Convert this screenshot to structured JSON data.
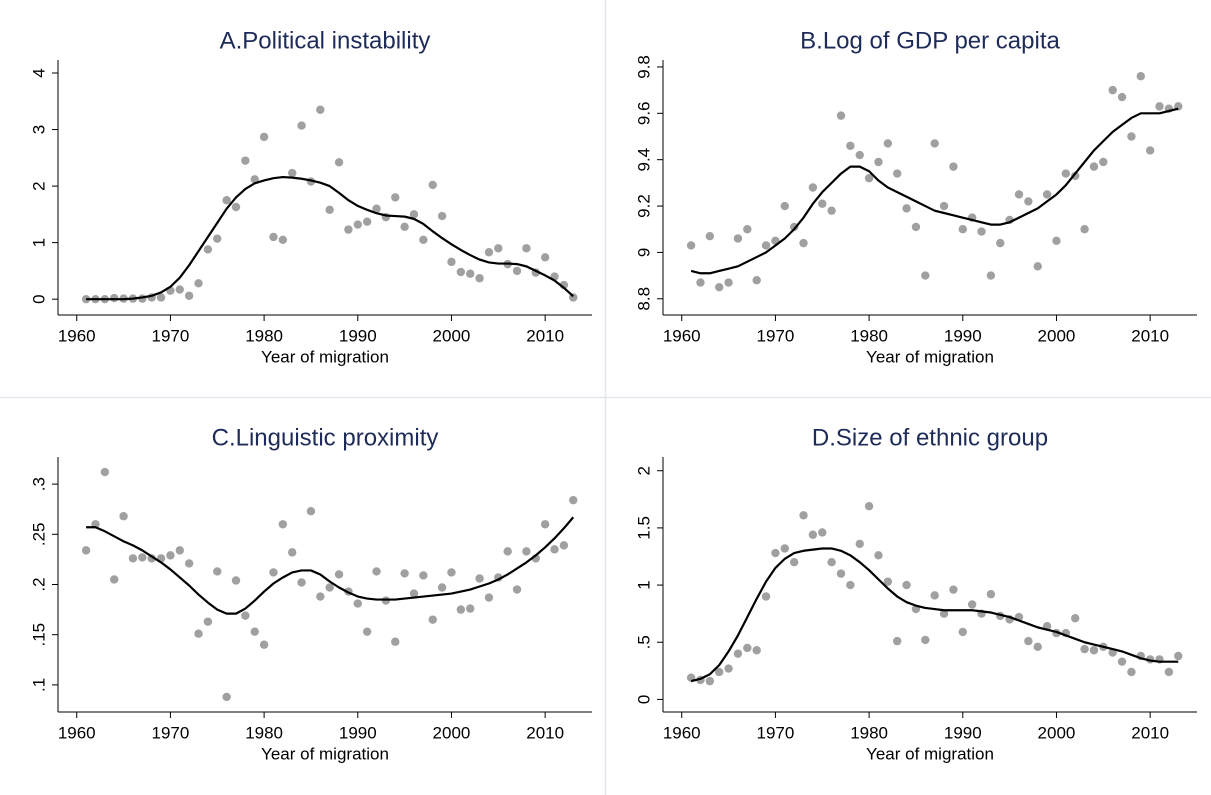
{
  "chart_data": [
    {
      "type": "scatter",
      "title": "A.Political instability",
      "xlabel": "Year of migration",
      "x": [
        1961,
        1962,
        1963,
        1964,
        1965,
        1966,
        1967,
        1968,
        1969,
        1970,
        1971,
        1972,
        1973,
        1974,
        1975,
        1976,
        1977,
        1978,
        1979,
        1980,
        1981,
        1982,
        1983,
        1984,
        1985,
        1986,
        1987,
        1988,
        1989,
        1990,
        1991,
        1992,
        1993,
        1994,
        1995,
        1996,
        1997,
        1998,
        1999,
        2000,
        2001,
        2002,
        2003,
        2004,
        2005,
        2006,
        2007,
        2008,
        2009,
        2010,
        2011,
        2012,
        2013
      ],
      "values": [
        0,
        0,
        0,
        0.02,
        0.01,
        0.01,
        0.01,
        0.03,
        0.03,
        0.15,
        0.17,
        0.06,
        0.28,
        0.88,
        1.07,
        1.75,
        1.63,
        2.45,
        2.12,
        2.87,
        1.1,
        1.05,
        2.23,
        3.07,
        2.08,
        3.35,
        1.58,
        2.42,
        1.23,
        1.32,
        1.37,
        1.6,
        1.45,
        1.8,
        1.28,
        1.5,
        1.05,
        2.02,
        1.47,
        0.66,
        0.48,
        0.45,
        0.37,
        0.83,
        0.9,
        0.62,
        0.5,
        0.9,
        0.47,
        0.74,
        0.4,
        0.25,
        0.03
      ],
      "fit": [
        0,
        0,
        0,
        0,
        0,
        0.01,
        0.03,
        0.06,
        0.12,
        0.22,
        0.38,
        0.6,
        0.85,
        1.1,
        1.35,
        1.6,
        1.8,
        1.95,
        2.05,
        2.1,
        2.14,
        2.16,
        2.15,
        2.13,
        2.1,
        2.06,
        2.0,
        1.88,
        1.75,
        1.65,
        1.58,
        1.52,
        1.48,
        1.47,
        1.46,
        1.42,
        1.33,
        1.2,
        1.08,
        0.97,
        0.87,
        0.78,
        0.7,
        0.65,
        0.63,
        0.63,
        0.62,
        0.58,
        0.5,
        0.42,
        0.33,
        0.2,
        0.05
      ],
      "color": "#a0a0a0",
      "fit_color": "#000000",
      "xlim": [
        1958,
        2015
      ],
      "xticks": [
        1960,
        1970,
        1980,
        1990,
        2000,
        2010
      ],
      "ylim": [
        -0.28,
        4.23
      ],
      "yticks": [
        0,
        1,
        2,
        3,
        4
      ]
    },
    {
      "type": "scatter",
      "title": "B.Log of GDP per capita",
      "xlabel": "Year of migration",
      "x": [
        1961,
        1962,
        1963,
        1964,
        1965,
        1966,
        1967,
        1968,
        1969,
        1970,
        1971,
        1972,
        1973,
        1974,
        1975,
        1976,
        1977,
        1978,
        1979,
        1980,
        1981,
        1982,
        1983,
        1984,
        1985,
        1986,
        1987,
        1988,
        1989,
        1990,
        1991,
        1992,
        1993,
        1994,
        1995,
        1996,
        1997,
        1998,
        1999,
        2000,
        2001,
        2002,
        2003,
        2004,
        2005,
        2006,
        2007,
        2008,
        2009,
        2010,
        2011,
        2012,
        2013
      ],
      "values": [
        9.03,
        8.87,
        9.07,
        8.85,
        8.87,
        9.06,
        9.1,
        8.88,
        9.03,
        9.05,
        9.2,
        9.11,
        9.04,
        9.28,
        9.21,
        9.18,
        9.59,
        9.46,
        9.42,
        9.32,
        9.39,
        9.47,
        9.34,
        9.19,
        9.11,
        8.9,
        9.47,
        9.2,
        9.37,
        9.1,
        9.15,
        9.09,
        8.9,
        9.04,
        9.14,
        9.25,
        9.22,
        8.94,
        9.25,
        9.05,
        9.34,
        9.33,
        9.1,
        9.37,
        9.39,
        9.7,
        9.67,
        9.5,
        9.76,
        9.44,
        9.63,
        9.62,
        9.63
      ],
      "fit": [
        8.92,
        8.91,
        8.91,
        8.92,
        8.93,
        8.94,
        8.96,
        8.98,
        9.0,
        9.03,
        9.06,
        9.1,
        9.15,
        9.21,
        9.26,
        9.3,
        9.34,
        9.37,
        9.37,
        9.35,
        9.31,
        9.28,
        9.26,
        9.24,
        9.22,
        9.2,
        9.18,
        9.17,
        9.16,
        9.15,
        9.14,
        9.13,
        9.12,
        9.12,
        9.13,
        9.15,
        9.17,
        9.19,
        9.22,
        9.25,
        9.29,
        9.34,
        9.39,
        9.44,
        9.48,
        9.52,
        9.55,
        9.58,
        9.6,
        9.6,
        9.6,
        9.61,
        9.62
      ],
      "color": "#a0a0a0",
      "fit_color": "#000000",
      "xlim": [
        1958,
        2015
      ],
      "xticks": [
        1960,
        1970,
        1980,
        1990,
        2000,
        2010
      ],
      "ylim": [
        8.73,
        9.83
      ],
      "yticks": [
        8.8,
        9,
        9.2,
        9.4,
        9.6,
        9.8
      ]
    },
    {
      "type": "scatter",
      "title": "C.Linguistic proximity",
      "xlabel": "Year of migration",
      "x": [
        1961,
        1962,
        1963,
        1964,
        1965,
        1966,
        1967,
        1968,
        1969,
        1970,
        1971,
        1972,
        1973,
        1974,
        1975,
        1976,
        1977,
        1978,
        1979,
        1980,
        1981,
        1982,
        1983,
        1984,
        1985,
        1986,
        1987,
        1988,
        1989,
        1990,
        1991,
        1992,
        1993,
        1994,
        1995,
        1996,
        1997,
        1998,
        1999,
        2000,
        2001,
        2002,
        2003,
        2004,
        2005,
        2006,
        2007,
        2008,
        2009,
        2010,
        2011,
        2012,
        2013
      ],
      "values": [
        0.234,
        0.26,
        0.312,
        0.205,
        0.268,
        0.226,
        0.227,
        0.226,
        0.226,
        0.229,
        0.234,
        0.221,
        0.151,
        0.163,
        0.213,
        0.088,
        0.204,
        0.169,
        0.153,
        0.14,
        0.212,
        0.26,
        0.232,
        0.202,
        0.273,
        0.188,
        0.197,
        0.21,
        0.193,
        0.181,
        0.153,
        0.213,
        0.184,
        0.143,
        0.211,
        0.191,
        0.209,
        0.165,
        0.197,
        0.212,
        0.175,
        0.176,
        0.206,
        0.187,
        0.207,
        0.233,
        0.195,
        0.233,
        0.226,
        0.26,
        0.235,
        0.239,
        0.284
      ],
      "fit": [
        0.257,
        0.257,
        0.253,
        0.248,
        0.243,
        0.239,
        0.234,
        0.228,
        0.222,
        0.215,
        0.207,
        0.199,
        0.19,
        0.182,
        0.175,
        0.171,
        0.171,
        0.176,
        0.184,
        0.193,
        0.201,
        0.207,
        0.212,
        0.214,
        0.214,
        0.21,
        0.203,
        0.197,
        0.192,
        0.188,
        0.186,
        0.185,
        0.185,
        0.185,
        0.186,
        0.187,
        0.188,
        0.189,
        0.19,
        0.191,
        0.193,
        0.195,
        0.198,
        0.201,
        0.205,
        0.21,
        0.216,
        0.222,
        0.229,
        0.237,
        0.246,
        0.256,
        0.267
      ],
      "color": "#a0a0a0",
      "fit_color": "#000000",
      "xlim": [
        1958,
        2015
      ],
      "xticks": [
        1960,
        1970,
        1980,
        1990,
        2000,
        2010
      ],
      "ylim": [
        0.073,
        0.327
      ],
      "yticks": [
        {
          "value": 0.1,
          "label": ".1"
        },
        {
          "value": 0.15,
          "label": ".15"
        },
        {
          "value": 0.2,
          "label": ".2"
        },
        {
          "value": 0.25,
          "label": ".25"
        },
        {
          "value": 0.3,
          "label": ".3"
        }
      ]
    },
    {
      "type": "scatter",
      "title": "D.Size of ethnic group",
      "xlabel": "Year of migration",
      "x": [
        1961,
        1962,
        1963,
        1964,
        1965,
        1966,
        1967,
        1968,
        1969,
        1970,
        1971,
        1972,
        1973,
        1974,
        1975,
        1976,
        1977,
        1978,
        1979,
        1980,
        1981,
        1982,
        1983,
        1984,
        1985,
        1986,
        1987,
        1988,
        1989,
        1990,
        1991,
        1992,
        1993,
        1994,
        1995,
        1996,
        1997,
        1998,
        1999,
        2000,
        2001,
        2002,
        2003,
        2004,
        2005,
        2006,
        2007,
        2008,
        2009,
        2010,
        2011,
        2012,
        2013
      ],
      "values": [
        0.19,
        0.17,
        0.16,
        0.24,
        0.27,
        0.4,
        0.45,
        0.43,
        0.9,
        1.28,
        1.32,
        1.2,
        1.61,
        1.44,
        1.46,
        1.2,
        1.1,
        1.0,
        1.36,
        1.69,
        1.26,
        1.03,
        0.51,
        1.0,
        0.79,
        0.52,
        0.91,
        0.75,
        0.96,
        0.59,
        0.83,
        0.75,
        0.92,
        0.73,
        0.7,
        0.72,
        0.51,
        0.46,
        0.64,
        0.58,
        0.58,
        0.71,
        0.44,
        0.43,
        0.46,
        0.41,
        0.33,
        0.24,
        0.38,
        0.35,
        0.35,
        0.24,
        0.38
      ],
      "fit": [
        0.16,
        0.18,
        0.22,
        0.3,
        0.42,
        0.56,
        0.72,
        0.88,
        1.03,
        1.15,
        1.23,
        1.28,
        1.3,
        1.31,
        1.32,
        1.32,
        1.3,
        1.26,
        1.2,
        1.13,
        1.05,
        0.97,
        0.9,
        0.85,
        0.82,
        0.8,
        0.79,
        0.78,
        0.78,
        0.78,
        0.78,
        0.77,
        0.76,
        0.74,
        0.72,
        0.69,
        0.66,
        0.63,
        0.61,
        0.59,
        0.56,
        0.53,
        0.5,
        0.48,
        0.46,
        0.44,
        0.42,
        0.39,
        0.36,
        0.34,
        0.33,
        0.33,
        0.33
      ],
      "color": "#a0a0a0",
      "fit_color": "#000000",
      "xlim": [
        1958,
        2015
      ],
      "xticks": [
        1960,
        1970,
        1980,
        1990,
        2000,
        2010
      ],
      "ylim": [
        -0.11,
        2.12
      ],
      "yticks": [
        0,
        {
          "value": 0.5,
          "label": ".5"
        },
        1,
        {
          "value": 1.5,
          "label": "1.5"
        },
        2
      ]
    }
  ]
}
